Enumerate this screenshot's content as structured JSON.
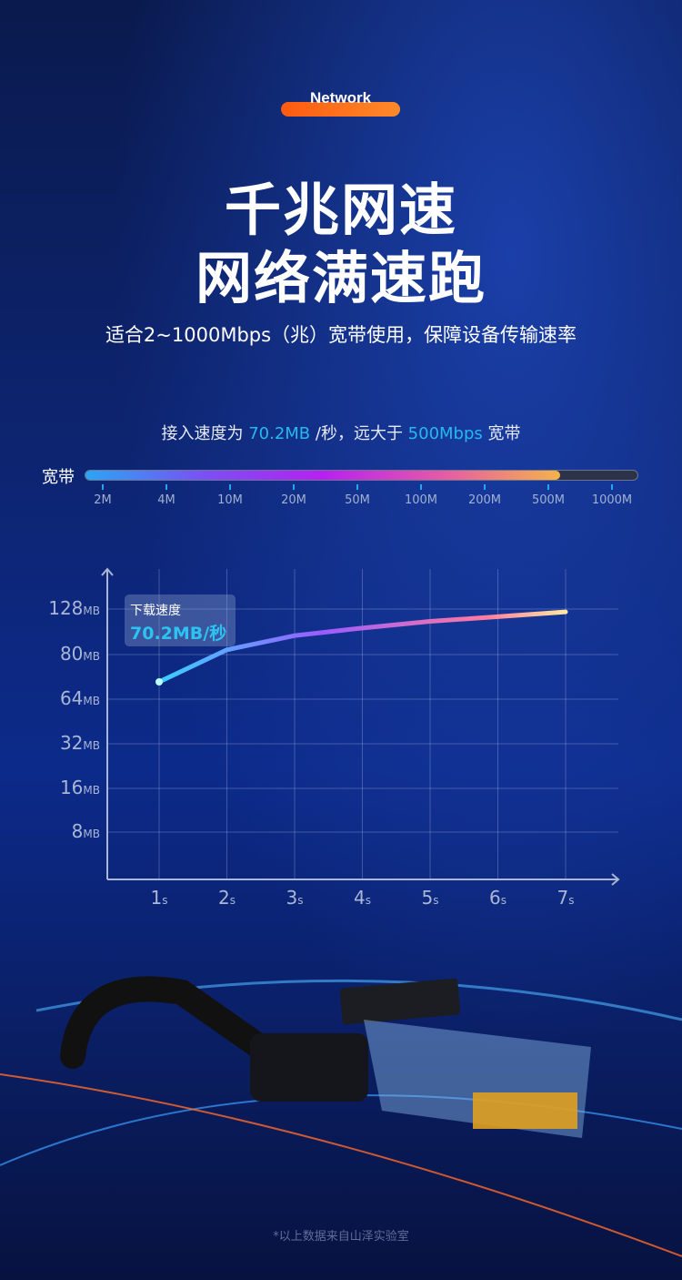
{
  "header": {
    "tag": "Network",
    "title_line1": "千兆网速",
    "title_line2": "网络满速跑",
    "subtitle": "适合2~1000Mbps（兆）宽带使用，保障设备传输速率"
  },
  "speed_line": {
    "prefix": "接入速度为 ",
    "value": "70.2MB",
    "middle": " /秒，远大于 ",
    "compare": "500Mbps",
    "suffix": " 宽带"
  },
  "bandwidth_bar": {
    "label": "宽带",
    "ticks": [
      "2M",
      "4M",
      "10M",
      "20M",
      "50M",
      "100M",
      "200M",
      "500M",
      "1000M"
    ],
    "fill_level": "500M",
    "colors": [
      "#2aa6f4",
      "#b720f2",
      "#f5b34a"
    ]
  },
  "chart_data": {
    "type": "line",
    "x": [
      "1",
      "2",
      "3",
      "4",
      "5",
      "6",
      "7"
    ],
    "x_unit": "s",
    "y_ticks": [
      "8",
      "16",
      "32",
      "64",
      "80",
      "128"
    ],
    "y_unit": "MB",
    "values": [
      70.2,
      85,
      100,
      108,
      115,
      120,
      125
    ],
    "grid": true,
    "annotation": {
      "label": "下载速度",
      "value": "70.2MB/秒"
    }
  },
  "footnote": "*以上数据来自山泽实验室"
}
